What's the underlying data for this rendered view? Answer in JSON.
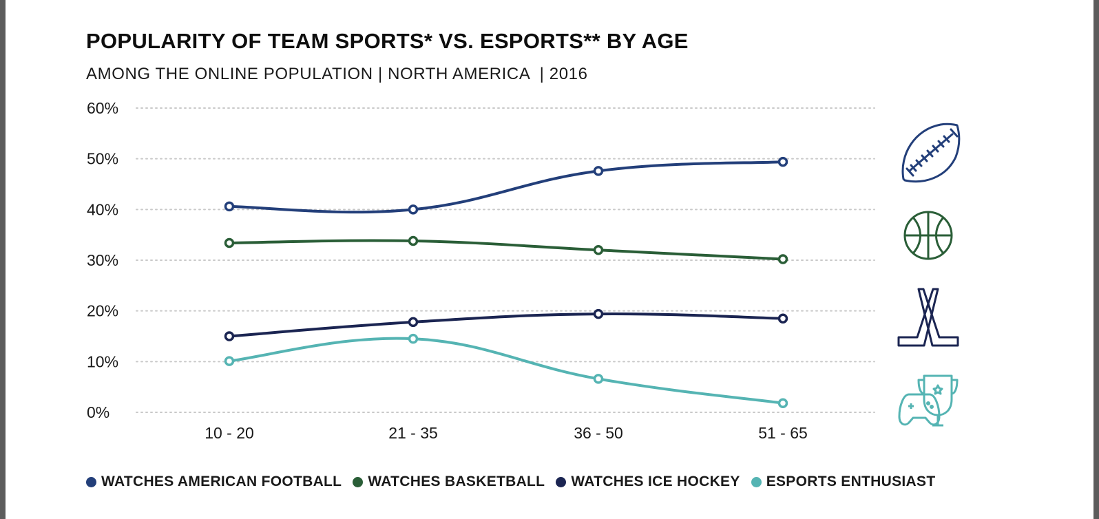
{
  "chart_data": {
    "type": "line",
    "title": "POPULARITY OF TEAM SPORTS* VS. ESPORTS** BY AGE",
    "subtitle": "AMONG THE ONLINE POPULATION | NORTH AMERICA  | 2016",
    "categories": [
      "10 - 20",
      "21 - 35",
      "36 - 50",
      "51 - 65"
    ],
    "y_ticks": [
      "0%",
      "10%",
      "20%",
      "30%",
      "40%",
      "50%",
      "60%"
    ],
    "ylim": [
      0,
      60
    ],
    "grid": "horizontal dotted",
    "legend_position": "bottom",
    "series": [
      {
        "name": "WATCHES AMERICAN FOOTBALL",
        "color": "#233f7a",
        "icon": "american-football-icon",
        "values": [
          40.6,
          40.0,
          47.6,
          49.4
        ]
      },
      {
        "name": "WATCHES BASKETBALL",
        "color": "#2a5e37",
        "icon": "basketball-icon",
        "values": [
          33.4,
          33.8,
          32.0,
          30.2
        ]
      },
      {
        "name": "WATCHES ICE HOCKEY",
        "color": "#1b2552",
        "icon": "ice-hockey-sticks-icon",
        "values": [
          15.0,
          17.8,
          19.4,
          18.5
        ]
      },
      {
        "name": "ESPORTS ENTHUSIAST",
        "color": "#55b4b3",
        "icon": "gamepad-trophy-icon",
        "values": [
          10.1,
          14.5,
          6.6,
          1.8
        ]
      }
    ]
  }
}
